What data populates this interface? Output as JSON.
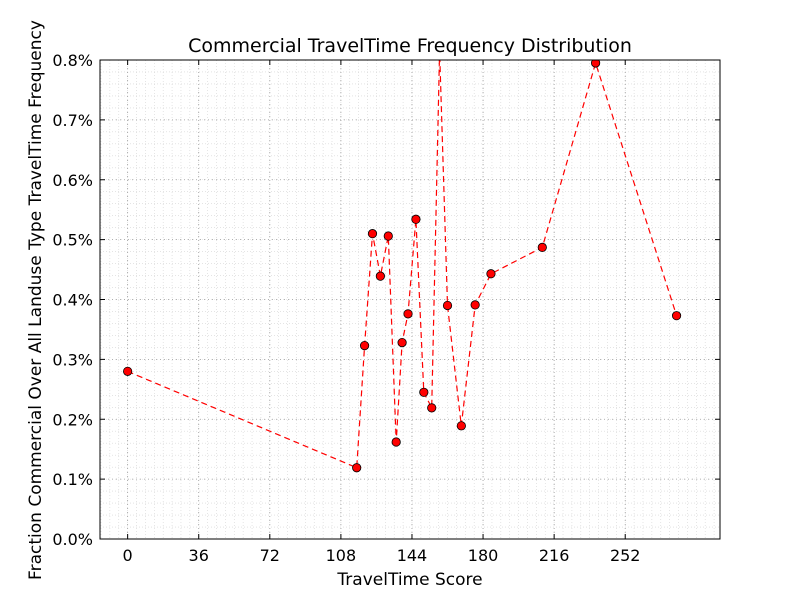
{
  "chart_data": {
    "type": "line",
    "title": "Commercial TravelTime Frequency Distribution",
    "xlabel": "TravelTime Score",
    "ylabel": "Fraction Commercial Over All Landuse Type TravelTime Frequency",
    "xlim": [
      -14,
      300
    ],
    "ylim": [
      0,
      0.8
    ],
    "x_ticks": [
      0,
      36,
      72,
      108,
      144,
      180,
      216,
      252
    ],
    "y_ticks": [
      0.0,
      0.1,
      0.2,
      0.3,
      0.4,
      0.5,
      0.6,
      0.7,
      0.8
    ],
    "x_tick_labels": [
      "0",
      "36",
      "72",
      "108",
      "144",
      "180",
      "216",
      "252"
    ],
    "y_tick_labels": [
      "0.0%",
      "0.1%",
      "0.2%",
      "0.3%",
      "0.4%",
      "0.5%",
      "0.6%",
      "0.7%",
      "0.8%"
    ],
    "grid": true,
    "line_color": "#ff0000",
    "marker_color": "#ff0000",
    "line_style": "dashed",
    "series": [
      {
        "x": [
          0,
          116,
          120,
          124,
          128,
          132,
          136,
          139,
          142,
          146,
          150,
          154,
          158,
          162,
          169,
          176,
          184,
          210,
          237,
          278
        ],
        "y": [
          0.28,
          0.119,
          0.323,
          0.51,
          0.439,
          0.506,
          0.162,
          0.328,
          0.376,
          0.534,
          0.245,
          0.219,
          0.815,
          0.39,
          0.189,
          0.391,
          0.443,
          0.487,
          0.795,
          0.373
        ]
      }
    ]
  }
}
